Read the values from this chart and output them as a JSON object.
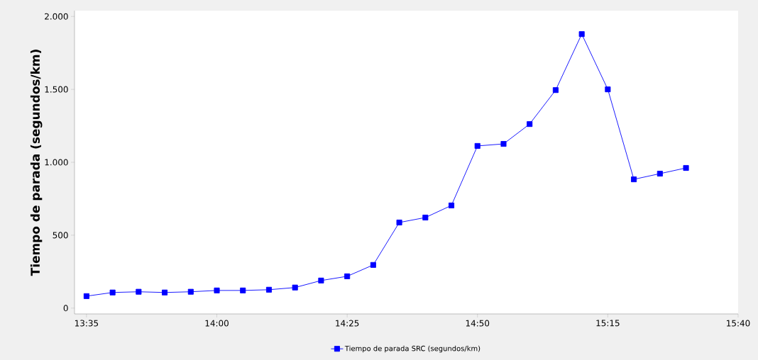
{
  "chart_data": {
    "type": "line",
    "ylabel": "Tiempo de parada (segundos/km)",
    "x": [
      13.5833,
      13.6667,
      13.75,
      13.8333,
      13.9167,
      14,
      14.0833,
      14.1667,
      14.25,
      14.3333,
      14.4167,
      14.5,
      14.5833,
      14.6667,
      14.75,
      14.8333,
      14.9167,
      15,
      15.0833,
      15.1667,
      15.25,
      15.3333,
      15.4167,
      15.5
    ],
    "series": [
      {
        "name": "Tiempo de parada SRC (segundos/km)",
        "color": "#0000ff",
        "values": [
          82,
          107,
          112,
          107,
          112,
          121,
          121,
          126,
          141,
          189,
          218,
          296,
          587,
          621,
          704,
          1112,
          1126,
          1262,
          1495,
          1879,
          1500,
          883,
          922,
          961
        ]
      }
    ],
    "xlim": [
      13.545,
      15.6667
    ],
    "xticks": [
      {
        "value": 13.5833,
        "label": "13:35"
      },
      {
        "value": 14,
        "label": "14:00"
      },
      {
        "value": 14.4167,
        "label": "14:25"
      },
      {
        "value": 14.8333,
        "label": "14:50"
      },
      {
        "value": 15.25,
        "label": "15:15"
      },
      {
        "value": 15.6667,
        "label": "15:40"
      }
    ],
    "ylim": [
      -40,
      2040
    ],
    "yticks": [
      0,
      500,
      {
        "value": 1000,
        "label": "1.000"
      },
      {
        "value": 1500,
        "label": "1.500"
      },
      {
        "value": 2000,
        "label": "2.000"
      }
    ],
    "grid": false,
    "legend": "bottom",
    "marker": "square",
    "line_style": "solid"
  }
}
